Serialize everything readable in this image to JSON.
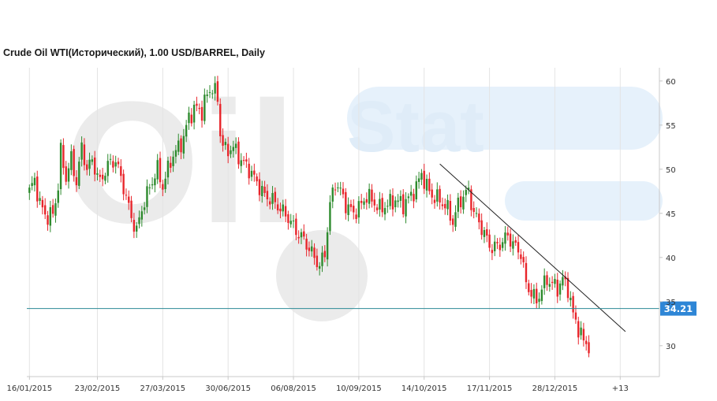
{
  "header": {
    "title": "Crude Oil WTI(Исторический), 1.00 USD/BARREL, Daily"
  },
  "watermark": {
    "left_text": "Oil",
    "right_text": "Stat"
  },
  "colors": {
    "up": "#2e8b2e",
    "down": "#e8252b",
    "grid": "#e4e4e4",
    "axis": "#c8c8c8",
    "price_line": "#2b8a96",
    "price_label_bg": "#2e86d6",
    "trendline": "#222222",
    "watermark": "#ebebeb",
    "watermark_blue": "#e6f1fb"
  },
  "chart_data": {
    "type": "candlestick",
    "title": "Crude Oil WTI(Исторический), 1.00 USD/BARREL, Daily",
    "ylim": [
      26.5,
      61.5
    ],
    "y_ticks": [
      30,
      35,
      40,
      45,
      50,
      55,
      60
    ],
    "y_tick_labels": [
      "30",
      "35",
      "40",
      "45",
      "50",
      "55",
      "60"
    ],
    "x_ticks": [
      {
        "label": "16/01/2015",
        "index": 0
      },
      {
        "label": "23/02/2015",
        "index": 26
      },
      {
        "label": "27/03/2015",
        "index": 51
      },
      {
        "label": "30/06/2015",
        "index": 76
      },
      {
        "label": "06/08/2015",
        "index": 101
      },
      {
        "label": "10/09/2015",
        "index": 126
      },
      {
        "label": "14/10/2015",
        "index": 151
      },
      {
        "label": "17/11/2015",
        "index": 176
      },
      {
        "label": "28/12/2015",
        "index": 201
      },
      {
        "label": "+13",
        "index": 226
      }
    ],
    "x_range": [
      -1,
      241
    ],
    "current_price": {
      "value": 34.21,
      "label": "34.21"
    },
    "trendline": {
      "from": {
        "index": 157,
        "value": 50.6
      },
      "to": {
        "index": 228,
        "value": 31.6
      }
    },
    "anchors": [
      [
        0,
        47.5
      ],
      [
        2,
        48.8
      ],
      [
        4,
        46.0
      ],
      [
        7,
        44.5
      ],
      [
        9,
        45.0
      ],
      [
        11,
        48.0
      ],
      [
        12,
        52.0
      ],
      [
        14,
        49.0
      ],
      [
        16,
        51.2
      ],
      [
        18,
        48.5
      ],
      [
        20,
        52.5
      ],
      [
        22,
        50.0
      ],
      [
        24,
        51.0
      ],
      [
        27,
        48.5
      ],
      [
        30,
        50.5
      ],
      [
        33,
        51.0
      ],
      [
        36,
        48.0
      ],
      [
        39,
        44.5
      ],
      [
        41,
        43.0
      ],
      [
        43,
        45.5
      ],
      [
        46,
        48.0
      ],
      [
        49,
        50.0
      ],
      [
        51,
        48.0
      ],
      [
        54,
        51.0
      ],
      [
        57,
        52.5
      ],
      [
        59,
        53.5
      ],
      [
        61,
        56.0
      ],
      [
        64,
        57.0
      ],
      [
        66,
        56.5
      ],
      [
        68,
        58.5
      ],
      [
        70,
        59.3
      ],
      [
        72,
        58.0
      ],
      [
        73,
        54.0
      ],
      [
        75,
        52.0
      ],
      [
        78,
        52.5
      ],
      [
        81,
        51.0
      ],
      [
        84,
        50.0
      ],
      [
        87,
        48.5
      ],
      [
        90,
        47.0
      ],
      [
        93,
        46.5
      ],
      [
        96,
        45.5
      ],
      [
        99,
        44.5
      ],
      [
        102,
        43.0
      ],
      [
        105,
        42.0
      ],
      [
        108,
        40.5
      ],
      [
        111,
        39.0
      ],
      [
        113,
        40.5
      ],
      [
        115,
        46.0
      ],
      [
        117,
        48.5
      ],
      [
        119,
        47.5
      ],
      [
        121,
        46.0
      ],
      [
        124,
        45.0
      ],
      [
        127,
        46.0
      ],
      [
        129,
        47.0
      ],
      [
        131,
        46.5
      ],
      [
        134,
        45.5
      ],
      [
        137,
        46.0
      ],
      [
        140,
        46.5
      ],
      [
        143,
        46.0
      ],
      [
        146,
        47.0
      ],
      [
        148,
        48.0
      ],
      [
        150,
        49.5
      ],
      [
        152,
        48.0
      ],
      [
        154,
        47.0
      ],
      [
        157,
        46.5
      ],
      [
        160,
        45.5
      ],
      [
        162,
        44.0
      ],
      [
        164,
        46.0
      ],
      [
        166,
        47.0
      ],
      [
        168,
        47.5
      ],
      [
        170,
        45.0
      ],
      [
        172,
        44.0
      ],
      [
        175,
        42.0
      ],
      [
        177,
        41.0
      ],
      [
        180,
        41.5
      ],
      [
        183,
        42.5
      ],
      [
        185,
        41.5
      ],
      [
        188,
        40.5
      ],
      [
        190,
        37.0
      ],
      [
        192,
        36.0
      ],
      [
        194,
        35.0
      ],
      [
        196,
        36.5
      ],
      [
        198,
        37.5
      ],
      [
        200,
        37.0
      ],
      [
        202,
        36.5
      ],
      [
        204,
        37.5
      ],
      [
        206,
        36.5
      ],
      [
        208,
        33.5
      ],
      [
        210,
        32.0
      ],
      [
        212,
        30.5
      ],
      [
        214,
        30.0
      ]
    ]
  }
}
